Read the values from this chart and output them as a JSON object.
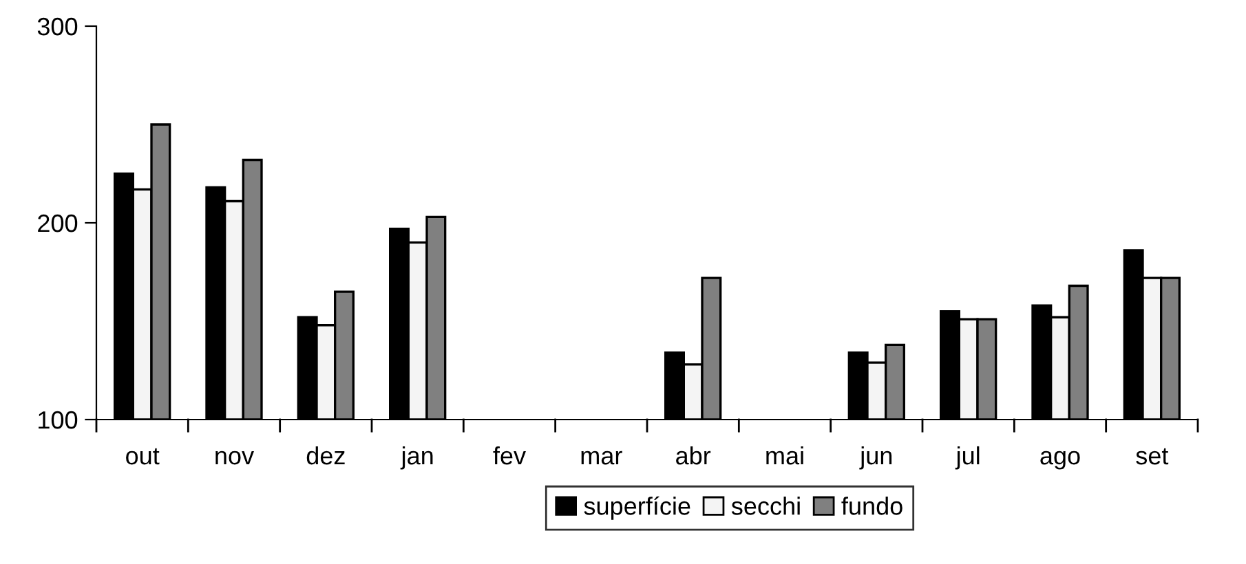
{
  "chart_data": {
    "type": "bar",
    "categories": [
      "out",
      "nov",
      "dez",
      "jan",
      "fev",
      "mar",
      "abr",
      "mai",
      "jun",
      "jul",
      "ago",
      "set"
    ],
    "series": [
      {
        "name": "superfície",
        "color": "#000000",
        "values": [
          225,
          218,
          152,
          197,
          null,
          null,
          134,
          null,
          134,
          155,
          158,
          186
        ]
      },
      {
        "name": "secchi",
        "color": "#f4f4f4",
        "values": [
          217,
          211,
          148,
          190,
          null,
          null,
          128,
          null,
          129,
          151,
          152,
          172
        ]
      },
      {
        "name": "fundo",
        "color": "#808080",
        "values": [
          250,
          232,
          165,
          203,
          null,
          null,
          172,
          null,
          138,
          151,
          168,
          172
        ]
      }
    ],
    "ylim": [
      100,
      300
    ],
    "yticks": [
      100,
      200,
      300
    ],
    "grid": false,
    "legend": "bottom"
  }
}
